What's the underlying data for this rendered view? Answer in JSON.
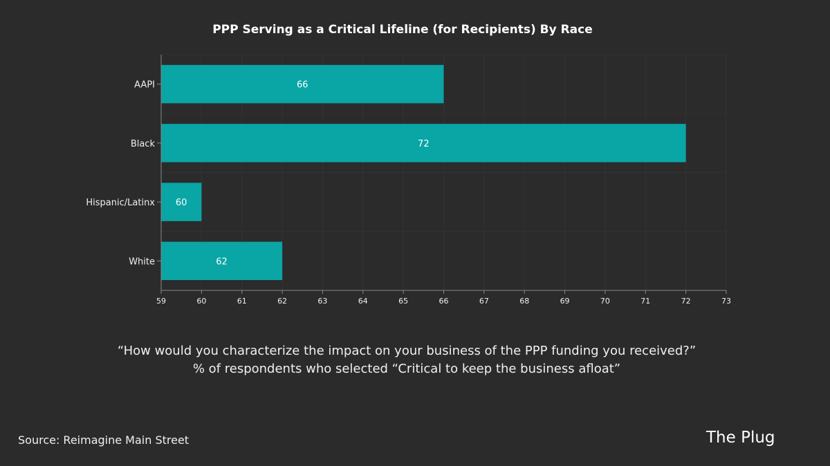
{
  "chart_data": {
    "type": "bar",
    "orientation": "horizontal",
    "title": "PPP Serving as a Critical Lifeline (for Recipients) By Race",
    "categories": [
      "AAPI",
      "Black",
      "Hispanic/Latinx",
      "White"
    ],
    "values": [
      66,
      72,
      60,
      62
    ],
    "xlim": [
      59,
      73
    ],
    "xticks": [
      59,
      60,
      61,
      62,
      63,
      64,
      65,
      66,
      67,
      68,
      69,
      70,
      71,
      72,
      73
    ],
    "xlabel": "",
    "ylabel": "",
    "grid": true,
    "bar_color": "#0aa5a5",
    "grid_color": "#333333",
    "axis_color": "#8a8a8a"
  },
  "caption": {
    "line1": "“How would you characterize the impact on your business of the PPP funding you received?”",
    "line2": "% of respondents who selected “Critical to keep the business afloat”"
  },
  "source": "Source: Reimagine Main Street",
  "brand": "The Plug"
}
